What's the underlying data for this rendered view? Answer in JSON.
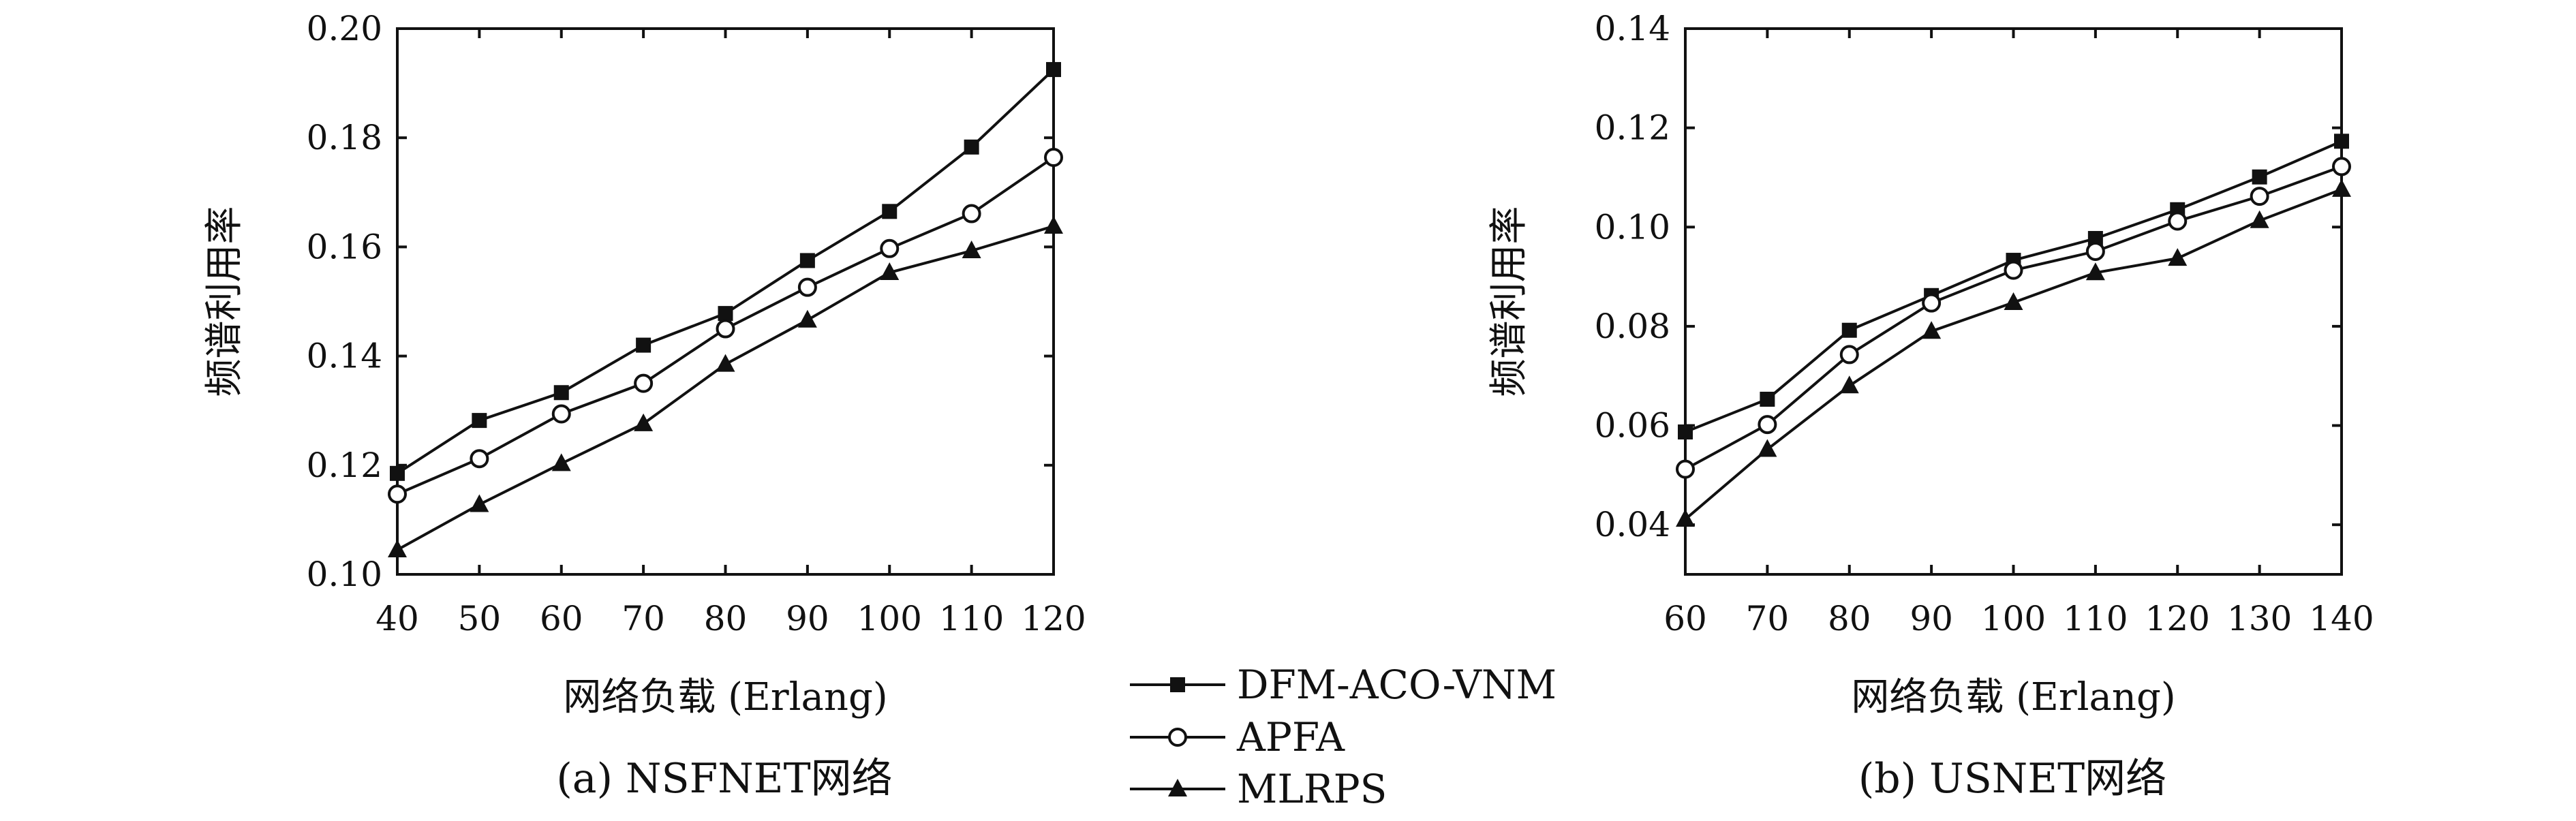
{
  "chart_data": [
    {
      "type": "line",
      "title": "",
      "caption": "(a) NSFNET网络",
      "xlabel": "网络负载 (Erlang)",
      "ylabel": "频谱利用率",
      "x": [
        40,
        50,
        60,
        70,
        80,
        90,
        100,
        110,
        120
      ],
      "xlim": [
        40,
        120
      ],
      "ylim": [
        0.1,
        0.2
      ],
      "xticks": [
        "40",
        "50",
        "60",
        "70",
        "80",
        "90",
        "100",
        "110",
        "120"
      ],
      "yticks": [
        "0.10",
        "0.12",
        "0.14",
        "0.16",
        "0.18",
        "0.20"
      ],
      "grid": false,
      "series": [
        {
          "name": "DFM-ACO-VNM",
          "marker": "filled-square",
          "values": [
            0.1185,
            0.1282,
            0.1333,
            0.142,
            0.1478,
            0.1575,
            0.1665,
            0.1783,
            0.1925
          ]
        },
        {
          "name": "APFA",
          "marker": "open-circle",
          "values": [
            0.1147,
            0.1212,
            0.1294,
            0.135,
            0.145,
            0.1526,
            0.1597,
            0.1661,
            0.1764
          ]
        },
        {
          "name": "MLRPS",
          "marker": "filled-triangle",
          "values": [
            0.1045,
            0.1128,
            0.1203,
            0.1276,
            0.1385,
            0.1466,
            0.1553,
            0.1593,
            0.1638
          ]
        }
      ]
    },
    {
      "type": "line",
      "title": "",
      "caption": "(b) USNET网络",
      "xlabel": "网络负载 (Erlang)",
      "ylabel": "频谱利用率",
      "x": [
        60,
        70,
        80,
        90,
        100,
        110,
        120,
        130,
        140
      ],
      "xlim": [
        60,
        140
      ],
      "ylim": [
        0.03,
        0.14
      ],
      "xticks": [
        "60",
        "70",
        "80",
        "90",
        "100",
        "110",
        "120",
        "130",
        "140"
      ],
      "yticks": [
        "0.04",
        "0.06",
        "0.08",
        "0.10",
        "0.12",
        "0.14"
      ],
      "grid": false,
      "series": [
        {
          "name": "DFM-ACO-VNM",
          "marker": "filled-square",
          "values": [
            0.0587,
            0.0653,
            0.0792,
            0.0862,
            0.0933,
            0.0977,
            0.1035,
            0.1101,
            0.1173
          ]
        },
        {
          "name": "APFA",
          "marker": "open-circle",
          "values": [
            0.0512,
            0.0602,
            0.0743,
            0.0847,
            0.0913,
            0.0951,
            0.1012,
            0.1062,
            0.1122
          ]
        },
        {
          "name": "MLRPS",
          "marker": "filled-triangle",
          "values": [
            0.0411,
            0.0552,
            0.068,
            0.079,
            0.0848,
            0.0908,
            0.0937,
            0.1013,
            0.1076
          ]
        }
      ]
    }
  ],
  "legend": {
    "position": "bottom-center",
    "items": [
      "DFM-ACO-VNM",
      "APFA",
      "MLRPS"
    ]
  }
}
